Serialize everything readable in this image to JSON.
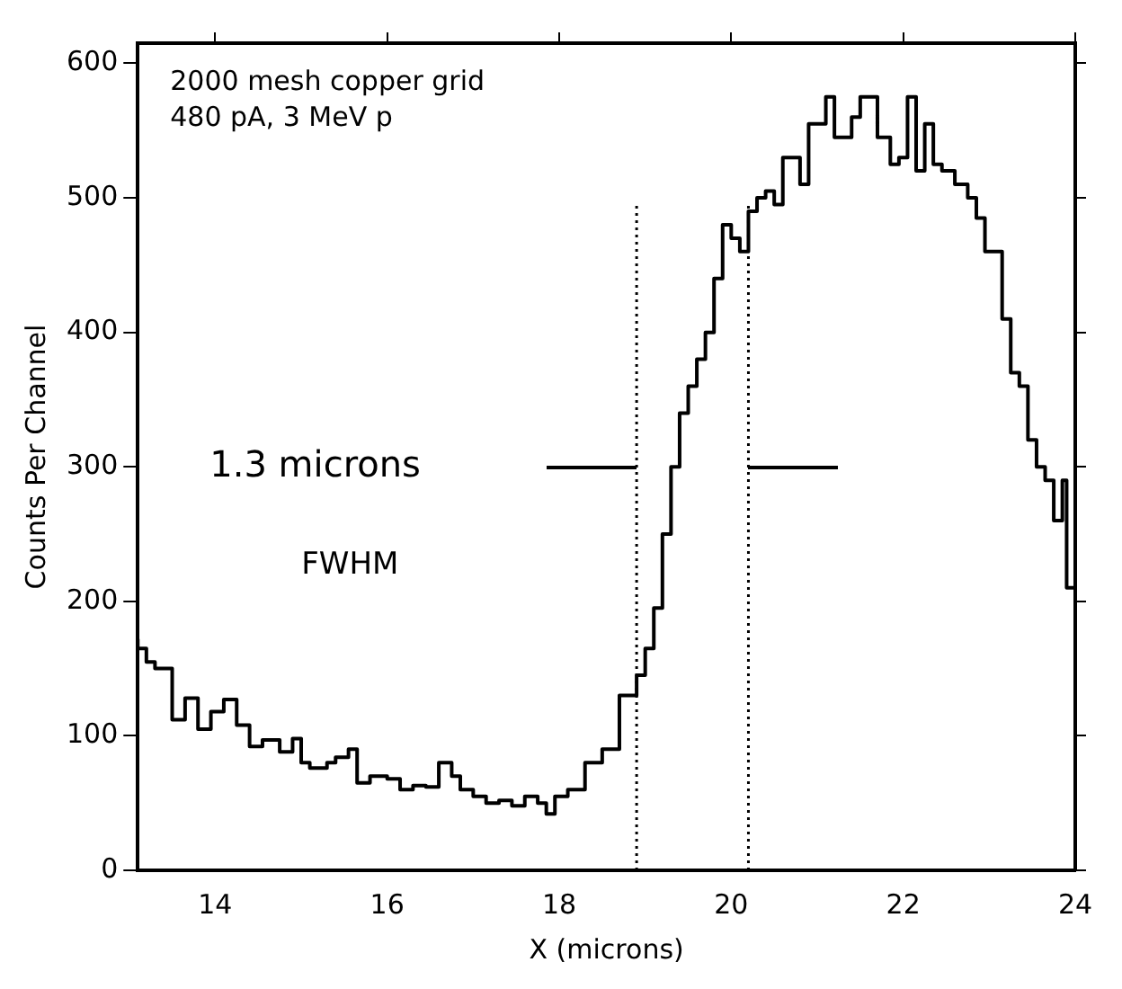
{
  "chart_data": {
    "type": "step",
    "xlabel": "X (microns)",
    "ylabel": "Counts Per Channel",
    "xlim": [
      13.1,
      24
    ],
    "xticks": [
      14,
      16,
      18,
      20,
      22,
      24
    ],
    "ylim": [
      0,
      615
    ],
    "yticks": [
      0,
      100,
      200,
      300,
      400,
      500,
      600
    ],
    "grid": false,
    "legend": false,
    "line_style": "solid",
    "marker": "none",
    "series": [
      {
        "color": "#000000",
        "x": [
          13.1,
          13.2,
          13.3,
          13.5,
          13.65,
          13.8,
          13.95,
          14.1,
          14.25,
          14.4,
          14.55,
          14.75,
          14.9,
          15.0,
          15.1,
          15.3,
          15.4,
          15.55,
          15.65,
          15.8,
          16.0,
          16.15,
          16.3,
          16.45,
          16.6,
          16.75,
          16.85,
          17.0,
          17.15,
          17.3,
          17.45,
          17.6,
          17.75,
          17.85,
          17.95,
          18.1,
          18.3,
          18.5,
          18.7,
          18.9,
          19.0,
          19.1,
          19.2,
          19.3,
          19.4,
          19.5,
          19.6,
          19.7,
          19.8,
          19.9,
          20.0,
          20.1,
          20.2,
          20.3,
          20.4,
          20.5,
          20.6,
          20.8,
          20.9,
          21.1,
          21.2,
          21.4,
          21.5,
          21.7,
          21.85,
          21.95,
          22.05,
          22.15,
          22.25,
          22.35,
          22.45,
          22.6,
          22.75,
          22.85,
          22.95,
          23.05,
          23.15,
          23.25,
          23.35,
          23.45,
          23.55,
          23.65,
          23.75,
          23.85,
          23.9,
          23.95,
          24.0
        ],
        "values": [
          172,
          165,
          155,
          150,
          112,
          128,
          105,
          118,
          127,
          108,
          92,
          97,
          88,
          98,
          80,
          76,
          80,
          84,
          90,
          65,
          70,
          68,
          60,
          63,
          62,
          80,
          70,
          60,
          55,
          50,
          52,
          48,
          55,
          50,
          42,
          55,
          60,
          80,
          90,
          130,
          145,
          165,
          195,
          250,
          300,
          340,
          360,
          380,
          400,
          440,
          480,
          470,
          460,
          490,
          500,
          505,
          495,
          530,
          510,
          555,
          575,
          545,
          560,
          575,
          545,
          525,
          530,
          575,
          520,
          555,
          525,
          520,
          510,
          500,
          485,
          460,
          460,
          410,
          370,
          360,
          320,
          300,
          290,
          260,
          290,
          210,
          210
        ]
      }
    ],
    "ref_lines": [
      {
        "axis": "x",
        "value": 18.9,
        "line_style": "dotted",
        "color": "#000000"
      },
      {
        "axis": "x",
        "value": 20.2,
        "line_style": "dotted",
        "color": "#000000"
      }
    ],
    "annotations": [
      "2000 mesh copper grid",
      "480 pA, 3 MeV p",
      "1.3 microns",
      "FWHM"
    ]
  }
}
